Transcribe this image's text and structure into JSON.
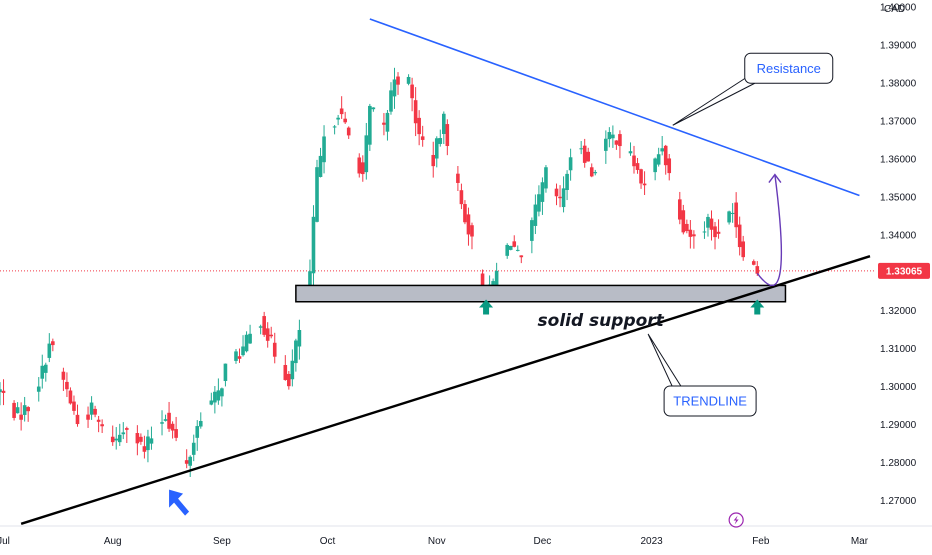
{
  "chart_data": {
    "type": "candlestick",
    "currency_label": "CAD",
    "current_price_label": "1.33065",
    "current_price": 1.33065,
    "ylim": [
      1.265,
      1.402
    ],
    "y_ticks": [
      1.27,
      1.28,
      1.29,
      1.3,
      1.31,
      1.32,
      1.33,
      1.34,
      1.35,
      1.36,
      1.37,
      1.38,
      1.39,
      1.4
    ],
    "y_tick_labels": [
      "1.27000",
      "1.28000",
      "1.29000",
      "1.30000",
      "1.31000",
      "1.32000",
      "1.33000",
      "1.34000",
      "1.35000",
      "1.36000",
      "1.37000",
      "1.38000",
      "1.39000",
      "1.40000"
    ],
    "x_range": [
      "2022-06-30",
      "2023-03-04"
    ],
    "x_ticks": [
      {
        "date": "2022-07-01",
        "label": "Jul"
      },
      {
        "date": "2022-08-01",
        "label": "Aug"
      },
      {
        "date": "2022-09-01",
        "label": "Sep"
      },
      {
        "date": "2022-10-01",
        "label": "Oct"
      },
      {
        "date": "2022-11-01",
        "label": "Nov"
      },
      {
        "date": "2022-12-01",
        "label": "Dec"
      },
      {
        "date": "2023-01-01",
        "label": "2023"
      },
      {
        "date": "2023-02-01",
        "label": "Feb"
      },
      {
        "date": "2023-03-01",
        "label": "Mar"
      }
    ],
    "path_points": [
      [
        "2022-06-30",
        1.299
      ],
      [
        "2022-07-05",
        1.2925
      ],
      [
        "2022-07-08",
        1.295
      ],
      [
        "2022-07-12",
        1.304
      ],
      [
        "2022-07-14",
        1.312
      ],
      [
        "2022-07-19",
        1.299
      ],
      [
        "2022-07-22",
        1.2905
      ],
      [
        "2022-07-26",
        1.294
      ],
      [
        "2022-07-29",
        1.2885
      ],
      [
        "2022-08-02",
        1.286
      ],
      [
        "2022-08-05",
        1.291
      ],
      [
        "2022-08-10",
        1.283
      ],
      [
        "2022-08-12",
        1.287
      ],
      [
        "2022-08-16",
        1.293
      ],
      [
        "2022-08-19",
        1.286
      ],
      [
        "2022-08-22",
        1.279
      ],
      [
        "2022-08-26",
        1.293
      ],
      [
        "2022-08-31",
        1.298
      ],
      [
        "2022-09-02",
        1.305
      ],
      [
        "2022-09-07",
        1.31
      ],
      [
        "2022-09-12",
        1.318
      ],
      [
        "2022-09-16",
        1.309
      ],
      [
        "2022-09-20",
        1.302
      ],
      [
        "2022-09-23",
        1.315
      ],
      [
        "2022-09-26",
        1.33
      ],
      [
        "2022-09-28",
        1.356
      ],
      [
        "2022-09-30",
        1.364
      ],
      [
        "2022-10-04",
        1.373
      ],
      [
        "2022-10-07",
        1.366
      ],
      [
        "2022-10-11",
        1.356
      ],
      [
        "2022-10-13",
        1.373
      ],
      [
        "2022-10-17",
        1.368
      ],
      [
        "2022-10-20",
        1.382
      ],
      [
        "2022-10-24",
        1.38
      ],
      [
        "2022-10-27",
        1.366
      ],
      [
        "2022-10-31",
        1.36
      ],
      [
        "2022-11-03",
        1.37
      ],
      [
        "2022-11-08",
        1.348
      ],
      [
        "2022-11-10",
        1.342
      ],
      [
        "2022-11-14",
        1.326
      ],
      [
        "2022-11-16",
        1.325
      ],
      [
        "2022-11-18",
        1.33
      ],
      [
        "2022-11-22",
        1.339
      ],
      [
        "2022-11-25",
        1.332
      ],
      [
        "2022-11-29",
        1.346
      ],
      [
        "2022-12-02",
        1.356
      ],
      [
        "2022-12-06",
        1.348
      ],
      [
        "2022-12-08",
        1.357
      ],
      [
        "2022-12-12",
        1.364
      ],
      [
        "2022-12-15",
        1.356
      ],
      [
        "2022-12-19",
        1.365
      ],
      [
        "2022-12-22",
        1.366
      ],
      [
        "2022-12-27",
        1.359
      ],
      [
        "2022-12-30",
        1.352
      ],
      [
        "2023-01-04",
        1.364
      ],
      [
        "2023-01-06",
        1.356
      ],
      [
        "2023-01-10",
        1.343
      ],
      [
        "2023-01-13",
        1.339
      ],
      [
        "2023-01-17",
        1.344
      ],
      [
        "2023-01-20",
        1.339
      ],
      [
        "2023-01-24",
        1.348
      ],
      [
        "2023-01-26",
        1.338
      ],
      [
        "2023-01-30",
        1.332
      ],
      [
        "2023-01-31",
        1.3307
      ]
    ],
    "seed": 7,
    "bull_color": "#22ab94",
    "bear_color": "#f23645",
    "annotations": {
      "resistance_line": {
        "start": [
          "2022-10-13",
          1.397
        ],
        "end": [
          "2023-03-01",
          1.3505
        ],
        "color": "#2962ff"
      },
      "trendline": {
        "start": [
          "2022-07-06",
          1.264
        ],
        "end": [
          "2023-03-04",
          1.3345
        ],
        "color": "#000000"
      },
      "support_zone": {
        "start": "2022-09-22",
        "end": "2023-02-08",
        "top": 1.3268,
        "bottom": 1.3225,
        "fill": "#b8bcc6"
      },
      "projection_curve": {
        "start": [
          "2023-01-31",
          1.33
        ],
        "mid": [
          "2023-02-03",
          1.325
        ],
        "end": [
          "2023-02-05",
          1.356
        ],
        "color": "#673ab7"
      },
      "resistance_label": {
        "text": "Resistance",
        "anchor": [
          "2023-01-07",
          1.369
        ]
      },
      "trendline_label": {
        "text": "TRENDLINE",
        "anchor": [
          "2022-12-31",
          1.314
        ]
      },
      "support_label": {
        "text": "solid support"
      },
      "up_arrows": [
        [
          "2022-11-15",
          1.321
        ],
        [
          "2023-01-31",
          1.321
        ]
      ],
      "pointer_arrow": [
        "2022-08-17",
        1.273
      ],
      "price_line_color": "#f23645"
    }
  }
}
